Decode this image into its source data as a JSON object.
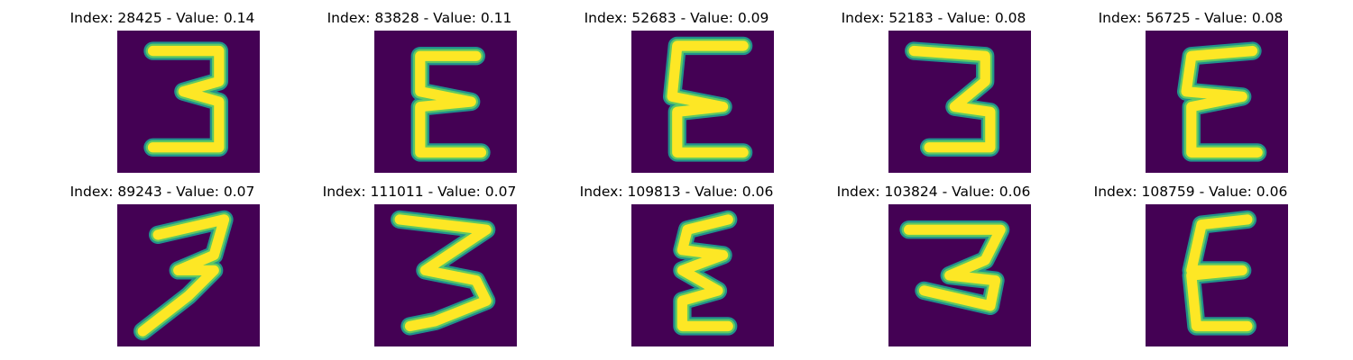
{
  "colors": {
    "background": "#440154",
    "stroke_core": "#fde725",
    "stroke_mid": "#5ec962",
    "stroke_edge": "#21918c"
  },
  "panels": [
    {
      "title": "Index: 28425 - Value: 0.14",
      "glyph": "3"
    },
    {
      "title": "Index: 83828 - Value: 0.11",
      "glyph": "E"
    },
    {
      "title": "Index: 52683 - Value: 0.09",
      "glyph": "E"
    },
    {
      "title": "Index: 52183 - Value: 0.08",
      "glyph": "3"
    },
    {
      "title": "Index: 56725 - Value: 0.08",
      "glyph": "E"
    },
    {
      "title": "Index: 89243 - Value: 0.07",
      "glyph": "3"
    },
    {
      "title": "Index: 111011 - Value: 0.07",
      "glyph": "3"
    },
    {
      "title": "Index: 109813 - Value: 0.06",
      "glyph": "E"
    },
    {
      "title": "Index: 103824 - Value: 0.06",
      "glyph": "3"
    },
    {
      "title": "Index: 108759 - Value: 0.06",
      "glyph": "E"
    }
  ]
}
